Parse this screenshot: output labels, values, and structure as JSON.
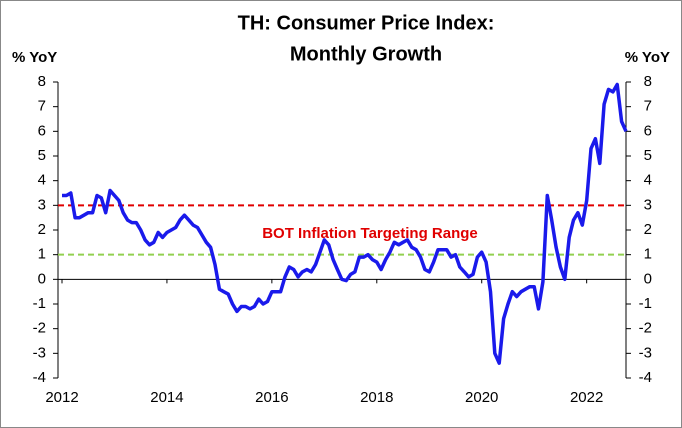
{
  "chart_data": {
    "type": "line",
    "title": [
      "TH: Consumer Price Index:",
      "Monthly Growth"
    ],
    "ylabel": "% YoY",
    "y2label": "% YoY",
    "annotation": {
      "text": "BOT Inflation Targeting Range",
      "color": "#e00000"
    },
    "reference_lines": [
      {
        "value": 3,
        "color": "#e00000"
      },
      {
        "value": 1,
        "color": "#92d050"
      }
    ],
    "xlim": [
      2012,
      2022.75
    ],
    "xticks": [
      2012,
      2014,
      2016,
      2018,
      2020,
      2022
    ],
    "ylim": [
      -4,
      8
    ],
    "yticks": [
      -4,
      -3,
      -2,
      -1,
      0,
      1,
      2,
      3,
      4,
      5,
      6,
      7,
      8
    ],
    "y2lim": [
      -4,
      8
    ],
    "y2ticks": [
      -4,
      -3,
      -2,
      -1,
      0,
      1,
      2,
      3,
      4,
      5,
      6,
      7,
      8
    ],
    "x": [
      2012,
      2012.083,
      2012.167,
      2012.25,
      2012.333,
      2012.417,
      2012.5,
      2012.583,
      2012.667,
      2012.75,
      2012.833,
      2012.917,
      2013,
      2013.083,
      2013.167,
      2013.25,
      2013.333,
      2013.417,
      2013.5,
      2013.583,
      2013.667,
      2013.75,
      2013.833,
      2013.917,
      2014,
      2014.083,
      2014.167,
      2014.25,
      2014.333,
      2014.417,
      2014.5,
      2014.583,
      2014.667,
      2014.75,
      2014.833,
      2014.917,
      2015,
      2015.083,
      2015.167,
      2015.25,
      2015.333,
      2015.417,
      2015.5,
      2015.583,
      2015.667,
      2015.75,
      2015.833,
      2015.917,
      2016,
      2016.083,
      2016.167,
      2016.25,
      2016.333,
      2016.417,
      2016.5,
      2016.583,
      2016.667,
      2016.75,
      2016.833,
      2016.917,
      2017,
      2017.083,
      2017.167,
      2017.25,
      2017.333,
      2017.417,
      2017.5,
      2017.583,
      2017.667,
      2017.75,
      2017.833,
      2017.917,
      2018,
      2018.083,
      2018.167,
      2018.25,
      2018.333,
      2018.417,
      2018.5,
      2018.583,
      2018.667,
      2018.75,
      2018.833,
      2018.917,
      2019,
      2019.083,
      2019.167,
      2019.25,
      2019.333,
      2019.417,
      2019.5,
      2019.583,
      2019.667,
      2019.75,
      2019.833,
      2019.917,
      2020,
      2020.083,
      2020.167,
      2020.25,
      2020.333,
      2020.417,
      2020.5,
      2020.583,
      2020.667,
      2020.75,
      2020.833,
      2020.917,
      2021,
      2021.083,
      2021.167,
      2021.25,
      2021.333,
      2021.417,
      2021.5,
      2021.583,
      2021.667,
      2021.75,
      2021.833,
      2021.917,
      2022,
      2022.083,
      2022.167,
      2022.25,
      2022.333,
      2022.417,
      2022.5,
      2022.583,
      2022.667,
      2022.75
    ],
    "series": [
      {
        "name": "CPI",
        "color": "#1a1aeb",
        "values": [
          3.4,
          3.4,
          3.5,
          2.5,
          2.5,
          2.6,
          2.7,
          2.7,
          3.4,
          3.3,
          2.7,
          3.6,
          3.4,
          3.2,
          2.7,
          2.4,
          2.3,
          2.3,
          2.0,
          1.6,
          1.4,
          1.5,
          1.9,
          1.7,
          1.9,
          2.0,
          2.1,
          2.4,
          2.6,
          2.4,
          2.2,
          2.1,
          1.8,
          1.5,
          1.3,
          0.6,
          -0.4,
          -0.5,
          -0.6,
          -1.0,
          -1.3,
          -1.1,
          -1.1,
          -1.2,
          -1.1,
          -0.8,
          -1.0,
          -0.9,
          -0.5,
          -0.5,
          -0.5,
          0.1,
          0.5,
          0.4,
          0.1,
          0.3,
          0.4,
          0.3,
          0.6,
          1.1,
          1.6,
          1.4,
          0.8,
          0.4,
          0.0,
          -0.05,
          0.2,
          0.3,
          0.9,
          0.9,
          1.0,
          0.8,
          0.7,
          0.4,
          0.8,
          1.1,
          1.5,
          1.4,
          1.5,
          1.6,
          1.3,
          1.2,
          0.9,
          0.4,
          0.3,
          0.7,
          1.2,
          1.2,
          1.2,
          0.9,
          1.0,
          0.5,
          0.3,
          0.1,
          0.2,
          0.9,
          1.1,
          0.7,
          -0.5,
          -3.0,
          -3.4,
          -1.6,
          -1.0,
          -0.5,
          -0.7,
          -0.5,
          -0.4,
          -0.3,
          -0.3,
          -1.2,
          -0.1,
          3.4,
          2.4,
          1.3,
          0.5,
          0.0,
          1.7,
          2.4,
          2.7,
          2.2,
          3.2,
          5.3,
          5.7,
          4.7,
          7.1,
          7.7,
          7.6,
          7.9,
          6.4,
          6.0
        ]
      }
    ]
  }
}
